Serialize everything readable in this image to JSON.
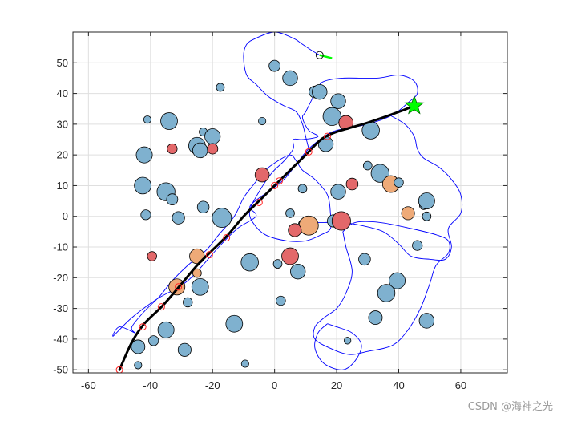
{
  "watermark": "CSDN @海神之光",
  "colors": {
    "obstacle_blue": "#7fb1cf",
    "obstacle_red": "#e3686a",
    "obstacle_orange": "#eeaa78",
    "path": "#000000",
    "waypoint": "#ff2020",
    "contour": "#0000ff",
    "goal_star": "#00ff00",
    "grid": "#dfdfdf"
  },
  "chart_data": {
    "type": "scatter",
    "title": "",
    "xlabel": "",
    "ylabel": "",
    "xlim": [
      -65,
      75
    ],
    "ylim": [
      -51,
      60
    ],
    "xticks": [
      -60,
      -40,
      -20,
      0,
      20,
      40,
      60
    ],
    "yticks": [
      -50,
      -40,
      -30,
      -20,
      -10,
      0,
      10,
      20,
      30,
      40,
      50
    ],
    "grid": true,
    "obstacles": [
      {
        "x": -41,
        "y": 31.5,
        "r": 1.2,
        "c": "blue"
      },
      {
        "x": -34,
        "y": 31,
        "r": 2.7,
        "c": "blue"
      },
      {
        "x": -42,
        "y": 20,
        "r": 2.6,
        "c": "blue"
      },
      {
        "x": -33,
        "y": 22,
        "r": 1.6,
        "c": "red"
      },
      {
        "x": -25,
        "y": 23,
        "r": 2.7,
        "c": "blue"
      },
      {
        "x": -24,
        "y": 21.5,
        "r": 2.4,
        "c": "blue"
      },
      {
        "x": -23,
        "y": 27.5,
        "r": 1.3,
        "c": "blue"
      },
      {
        "x": -20,
        "y": 26,
        "r": 2.5,
        "c": "blue"
      },
      {
        "x": -20,
        "y": 22,
        "r": 1.7,
        "c": "red"
      },
      {
        "x": -17.5,
        "y": 42,
        "r": 1.3,
        "c": "blue"
      },
      {
        "x": -42.5,
        "y": 10,
        "r": 2.7,
        "c": "blue"
      },
      {
        "x": -35,
        "y": 8,
        "r": 2.9,
        "c": "blue"
      },
      {
        "x": -33,
        "y": 5.5,
        "r": 1.8,
        "c": "blue"
      },
      {
        "x": -23,
        "y": 3,
        "r": 1.9,
        "c": "blue"
      },
      {
        "x": -41.5,
        "y": 0.5,
        "r": 1.6,
        "c": "blue"
      },
      {
        "x": -31,
        "y": -0.5,
        "r": 2.0,
        "c": "blue"
      },
      {
        "x": -17,
        "y": -0.5,
        "r": 3.1,
        "c": "blue"
      },
      {
        "x": -4,
        "y": 31,
        "r": 1.2,
        "c": "blue"
      },
      {
        "x": 0,
        "y": 49,
        "r": 1.8,
        "c": "blue"
      },
      {
        "x": 5,
        "y": 45,
        "r": 2.4,
        "c": "blue"
      },
      {
        "x": 13,
        "y": 40.5,
        "r": 1.9,
        "c": "blue"
      },
      {
        "x": 14.5,
        "y": 40.5,
        "r": 2.4,
        "c": "blue"
      },
      {
        "x": 20.5,
        "y": 37.5,
        "r": 2.4,
        "c": "blue"
      },
      {
        "x": 18.5,
        "y": 32.5,
        "r": 2.9,
        "c": "blue"
      },
      {
        "x": 23,
        "y": 30.5,
        "r": 2.3,
        "c": "red"
      },
      {
        "x": 31,
        "y": 28,
        "r": 2.8,
        "c": "blue"
      },
      {
        "x": 16.5,
        "y": 23.5,
        "r": 2.4,
        "c": "blue"
      },
      {
        "x": 30,
        "y": 16.5,
        "r": 1.4,
        "c": "blue"
      },
      {
        "x": 34,
        "y": 14,
        "r": 2.9,
        "c": "blue"
      },
      {
        "x": 37.5,
        "y": 10.5,
        "r": 2.7,
        "c": "orange"
      },
      {
        "x": 40,
        "y": 11,
        "r": 1.5,
        "c": "blue"
      },
      {
        "x": 48,
        "y": 3.5,
        "r": 1.3,
        "c": "blue"
      },
      {
        "x": 49,
        "y": 5,
        "r": 2.6,
        "c": "blue"
      },
      {
        "x": 49,
        "y": 0,
        "r": 1.4,
        "c": "blue"
      },
      {
        "x": 43,
        "y": 1,
        "r": 2.1,
        "c": "orange"
      },
      {
        "x": 46,
        "y": -9.5,
        "r": 1.6,
        "c": "blue"
      },
      {
        "x": -4,
        "y": 13.5,
        "r": 2.3,
        "c": "red"
      },
      {
        "x": 9,
        "y": 9,
        "r": 1.4,
        "c": "blue"
      },
      {
        "x": 20.5,
        "y": 8,
        "r": 2.4,
        "c": "blue"
      },
      {
        "x": 25,
        "y": 10.5,
        "r": 1.9,
        "c": "red"
      },
      {
        "x": 5,
        "y": 1,
        "r": 1.4,
        "c": "blue"
      },
      {
        "x": 10,
        "y": -3,
        "r": 2.4,
        "c": "blue"
      },
      {
        "x": 11,
        "y": -3,
        "r": 3.1,
        "c": "orange"
      },
      {
        "x": 6.5,
        "y": -4.5,
        "r": 2.1,
        "c": "red"
      },
      {
        "x": 19,
        "y": -1.5,
        "r": 2.0,
        "c": "blue"
      },
      {
        "x": 21.5,
        "y": -1.5,
        "r": 3.0,
        "c": "red"
      },
      {
        "x": 29,
        "y": -14,
        "r": 1.9,
        "c": "blue"
      },
      {
        "x": -25,
        "y": -13,
        "r": 2.4,
        "c": "orange"
      },
      {
        "x": -25,
        "y": -18.5,
        "r": 1.4,
        "c": "orange"
      },
      {
        "x": -39.5,
        "y": -13,
        "r": 1.5,
        "c": "red"
      },
      {
        "x": -8,
        "y": -15,
        "r": 2.8,
        "c": "blue"
      },
      {
        "x": 1,
        "y": -15.5,
        "r": 1.4,
        "c": "blue"
      },
      {
        "x": 5,
        "y": -13,
        "r": 2.7,
        "c": "red"
      },
      {
        "x": 7.5,
        "y": -18,
        "r": 2.4,
        "c": "blue"
      },
      {
        "x": -31.5,
        "y": -23,
        "r": 2.6,
        "c": "orange"
      },
      {
        "x": -24,
        "y": -23,
        "r": 2.7,
        "c": "blue"
      },
      {
        "x": -28,
        "y": -28,
        "r": 1.5,
        "c": "blue"
      },
      {
        "x": 2,
        "y": -27.5,
        "r": 1.5,
        "c": "blue"
      },
      {
        "x": 39.5,
        "y": -21,
        "r": 2.6,
        "c": "blue"
      },
      {
        "x": 36,
        "y": -25,
        "r": 2.8,
        "c": "blue"
      },
      {
        "x": 32.5,
        "y": -33,
        "r": 2.2,
        "c": "blue"
      },
      {
        "x": 49,
        "y": -34,
        "r": 2.4,
        "c": "blue"
      },
      {
        "x": -13,
        "y": -35,
        "r": 2.7,
        "c": "blue"
      },
      {
        "x": -35,
        "y": -37,
        "r": 2.6,
        "c": "blue"
      },
      {
        "x": -39,
        "y": -40.5,
        "r": 1.6,
        "c": "blue"
      },
      {
        "x": -44,
        "y": -42.5,
        "r": 2.2,
        "c": "blue"
      },
      {
        "x": -29,
        "y": -43.5,
        "r": 2.1,
        "c": "blue"
      },
      {
        "x": -44,
        "y": -48.5,
        "r": 1.2,
        "c": "blue"
      },
      {
        "x": -9.5,
        "y": -48,
        "r": 1.2,
        "c": "blue"
      },
      {
        "x": 23.5,
        "y": -40.5,
        "r": 1.1,
        "c": "blue"
      }
    ],
    "path": [
      [
        -50,
        -50
      ],
      [
        -46,
        -41
      ],
      [
        -42,
        -35
      ],
      [
        -36,
        -29
      ],
      [
        -30,
        -22
      ],
      [
        -25,
        -16
      ],
      [
        -20,
        -11
      ],
      [
        -15,
        -6
      ],
      [
        -10,
        0
      ],
      [
        -5,
        5
      ],
      [
        0,
        10
      ],
      [
        5,
        15
      ],
      [
        10,
        20
      ],
      [
        15,
        25
      ],
      [
        20,
        27.5
      ],
      [
        30,
        30.5
      ],
      [
        40,
        34
      ],
      [
        45,
        36
      ]
    ],
    "waypoints": [
      [
        -50,
        -50
      ],
      [
        -42.5,
        -36
      ],
      [
        -36.5,
        -29.5
      ],
      [
        -31,
        -23
      ],
      [
        -21,
        -12.5
      ],
      [
        -15.5,
        -7
      ],
      [
        -5,
        4.5
      ],
      [
        0,
        10
      ],
      [
        1.5,
        11.5
      ],
      [
        11,
        21
      ],
      [
        17,
        26
      ]
    ],
    "contours": [
      [
        [
          -45,
          -38
        ],
        [
          -50,
          -36
        ],
        [
          -52,
          -39
        ],
        [
          -46,
          -33
        ],
        [
          -38,
          -27
        ],
        [
          -28,
          -21
        ],
        [
          -18,
          -10
        ],
        [
          -12,
          -4
        ],
        [
          -6,
          0
        ],
        [
          -8,
          3
        ],
        [
          -5,
          6
        ],
        [
          -2,
          8
        ],
        [
          3,
          12
        ],
        [
          7,
          17
        ],
        [
          11,
          22
        ],
        [
          16,
          26
        ],
        [
          20,
          28
        ],
        [
          30,
          30
        ],
        [
          38,
          33
        ],
        [
          43,
          37
        ],
        [
          46,
          40
        ],
        [
          45,
          44
        ],
        [
          40,
          46
        ],
        [
          33,
          45
        ],
        [
          22,
          45
        ],
        [
          16,
          44
        ],
        [
          14,
          42
        ],
        [
          12,
          38
        ],
        [
          10,
          34
        ],
        [
          9,
          32
        ],
        [
          11,
          28
        ],
        [
          14,
          26
        ],
        [
          9,
          25
        ],
        [
          6,
          25
        ],
        [
          6,
          22
        ],
        [
          3,
          18
        ],
        [
          -1,
          14
        ],
        [
          -5,
          8
        ],
        [
          -8,
          2
        ],
        [
          -7,
          -2
        ],
        [
          -3,
          -6
        ],
        [
          4,
          -8
        ],
        [
          10,
          -8
        ],
        [
          15,
          -6
        ],
        [
          18,
          -4
        ],
        [
          18,
          1
        ],
        [
          17,
          7
        ],
        [
          13,
          12
        ],
        [
          9,
          15
        ],
        [
          7,
          18
        ],
        [
          5,
          20
        ],
        [
          1,
          18
        ],
        [
          -3,
          15
        ],
        [
          -7,
          10
        ],
        [
          -10,
          6
        ],
        [
          -13,
          0
        ],
        [
          -18,
          -6
        ],
        [
          -22,
          -11
        ],
        [
          -28,
          -16
        ],
        [
          -33,
          -21
        ],
        [
          -37,
          -26
        ],
        [
          -42,
          -31
        ],
        [
          -46,
          -36
        ],
        [
          -45,
          -38
        ]
      ],
      [
        [
          37,
          33
        ],
        [
          42,
          30
        ],
        [
          45,
          26
        ],
        [
          46,
          22
        ],
        [
          48,
          19
        ],
        [
          53,
          16
        ],
        [
          57,
          12
        ],
        [
          60,
          7
        ],
        [
          60,
          1
        ],
        [
          56,
          -4
        ],
        [
          57,
          -10
        ],
        [
          55,
          -14
        ],
        [
          50,
          -14
        ],
        [
          44,
          -13
        ],
        [
          40,
          -9
        ],
        [
          35,
          -5
        ],
        [
          28,
          -3
        ],
        [
          22,
          -2
        ],
        [
          16,
          -2
        ],
        [
          12,
          -2
        ]
      ],
      [
        [
          22,
          -5
        ],
        [
          26,
          -2
        ],
        [
          34,
          -2
        ],
        [
          44,
          -4
        ],
        [
          52,
          -6
        ],
        [
          56,
          -8
        ],
        [
          56,
          -12
        ],
        [
          52,
          -16
        ],
        [
          50,
          -22
        ],
        [
          47,
          -30
        ],
        [
          43,
          -37
        ],
        [
          38,
          -42
        ],
        [
          30,
          -44
        ],
        [
          24,
          -45
        ],
        [
          18,
          -43
        ],
        [
          13,
          -40
        ],
        [
          13,
          -36
        ],
        [
          16,
          -33
        ],
        [
          20,
          -30
        ],
        [
          23,
          -25
        ],
        [
          25,
          -18
        ],
        [
          23,
          -10
        ],
        [
          22,
          -5
        ]
      ],
      [
        [
          17,
          -35
        ],
        [
          20,
          -36
        ],
        [
          25,
          -38
        ],
        [
          28,
          -42
        ],
        [
          26,
          -47
        ],
        [
          22,
          -50
        ],
        [
          16,
          -48
        ],
        [
          13,
          -43
        ],
        [
          14,
          -38
        ],
        [
          17,
          -35
        ]
      ],
      [
        [
          14.5,
          52.5
        ],
        [
          12,
          54
        ],
        [
          9,
          56
        ],
        [
          6,
          58
        ],
        [
          0,
          60
        ],
        [
          -6,
          58
        ],
        [
          -9,
          56
        ],
        [
          -10,
          52
        ],
        [
          -9,
          46
        ],
        [
          -6,
          43
        ],
        [
          -2,
          39
        ],
        [
          3,
          36
        ],
        [
          7,
          34
        ],
        [
          9,
          30
        ],
        [
          10,
          26
        ],
        [
          11,
          22
        ]
      ]
    ],
    "start_marker": {
      "x": 14.5,
      "y": 52.5
    },
    "start_heading": [
      [
        14.5,
        52.5
      ],
      [
        18.5,
        51.5
      ]
    ],
    "goal": {
      "x": 45,
      "y": 36
    }
  }
}
